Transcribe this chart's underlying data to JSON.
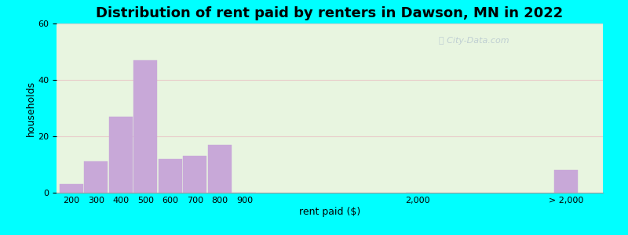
{
  "title": "Distribution of rent paid by renters in Dawson, MN in 2022",
  "xlabel": "rent paid ($)",
  "ylabel": "households",
  "categories": [
    "200",
    "300",
    "400",
    "500",
    "600",
    "700",
    "800",
    "900",
    "2,000",
    "> 2,000"
  ],
  "values": [
    3,
    11,
    27,
    47,
    12,
    13,
    17,
    0,
    0,
    8
  ],
  "bar_color": "#c8a8d8",
  "ylim": [
    0,
    60
  ],
  "yticks": [
    0,
    20,
    40,
    60
  ],
  "outer_background": "#00ffff",
  "plot_bg_color": "#e8f5e0",
  "title_fontsize": 13,
  "axis_label_fontsize": 9,
  "tick_fontsize": 8,
  "bar_positions": [
    0,
    1,
    2,
    3,
    4,
    5,
    6,
    7,
    14,
    20
  ],
  "bar_width": 0.95,
  "xlim": [
    -0.6,
    21.5
  ],
  "xtick_positions": [
    0,
    1,
    2,
    3,
    4,
    5,
    6,
    7,
    14,
    20
  ],
  "watermark_text": "Ⓢ City-Data.com",
  "watermark_color": "#b8c8d0",
  "grid_color": "#e8c8c8",
  "grid_alpha": 0.9
}
